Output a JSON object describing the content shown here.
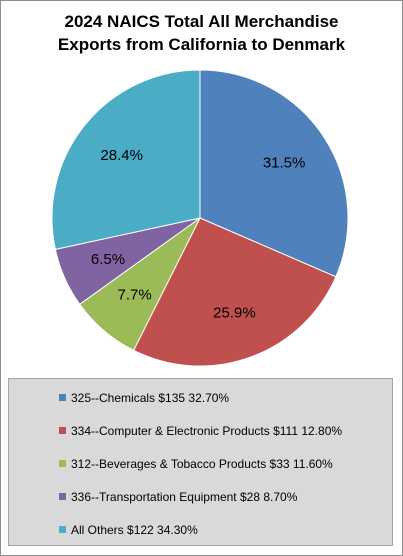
{
  "chart_data": {
    "type": "pie",
    "title_lines": [
      "2024 NAICS Total All Merchandise",
      "Exports from California to Denmark"
    ],
    "slices": [
      {
        "label": "31.5%",
        "value": 31.5,
        "color": "#4f81bd"
      },
      {
        "label": "25.9%",
        "value": 25.9,
        "color": "#c0504d"
      },
      {
        "label": "7.7%",
        "value": 7.7,
        "color": "#9bbb59"
      },
      {
        "label": "6.5%",
        "value": 6.5,
        "color": "#8064a2"
      },
      {
        "label": "28.4%",
        "value": 28.4,
        "color": "#4bacc6"
      }
    ],
    "legend": [
      {
        "text": "325--Chemicals $135 32.70%",
        "color": "#4f81bd"
      },
      {
        "text": "334--Computer & Electronic Products $111 12.80%",
        "color": "#c0504d"
      },
      {
        "text": "312--Beverages & Tobacco Products $33 11.60%",
        "color": "#9bbb59"
      },
      {
        "text": "336--Transportation Equipment $28 8.70%",
        "color": "#8064a2"
      },
      {
        "text": "All Others $122  34.30%",
        "color": "#4bacc6"
      }
    ]
  }
}
